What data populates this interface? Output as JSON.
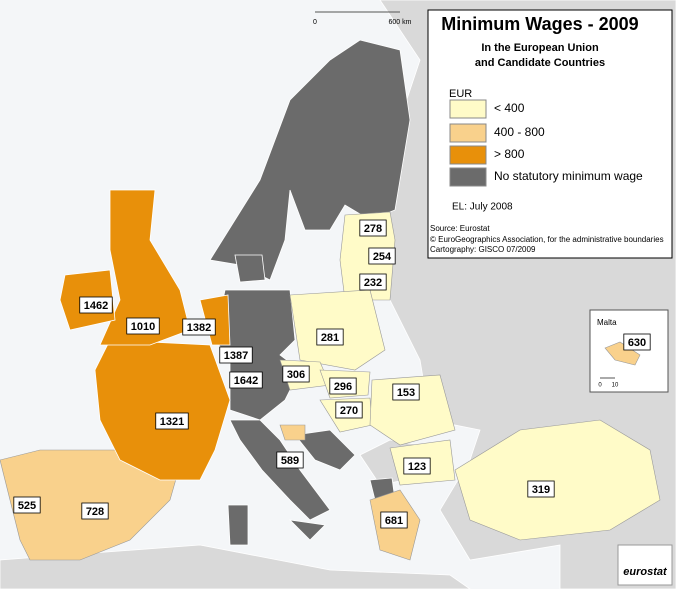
{
  "header": {
    "title": "Minimum Wages - 2009",
    "subtitle": [
      "In the European Union",
      "and Candidate Countries"
    ]
  },
  "scale_bar": [
    "0",
    "600 km"
  ],
  "legend": {
    "unit": "EUR",
    "items": [
      {
        "label": "< 400",
        "color": "#fffbc8"
      },
      {
        "label": "400 -  800",
        "color": "#f9d18c"
      },
      {
        "label": "> 800",
        "color": "#e8900a"
      },
      {
        "label": "No statutory minimum wage",
        "color": "#6b6b6b"
      }
    ],
    "note": "EL: July 2008"
  },
  "source": [
    "Source: Eurostat",
    "© EuroGeographics Association, for the administrative boundaries",
    "Cartography: GISCO 07/2009"
  ],
  "inset": {
    "title": "Malta",
    "value": 630,
    "scale": [
      "0",
      "10"
    ]
  },
  "wages": [
    278,
    254,
    232,
    1462,
    1010,
    1382,
    281,
    1387,
    306,
    296,
    1642,
    270,
    153,
    1321,
    123,
    589,
    319,
    525,
    728,
    681
  ],
  "logo": "eurostat"
}
